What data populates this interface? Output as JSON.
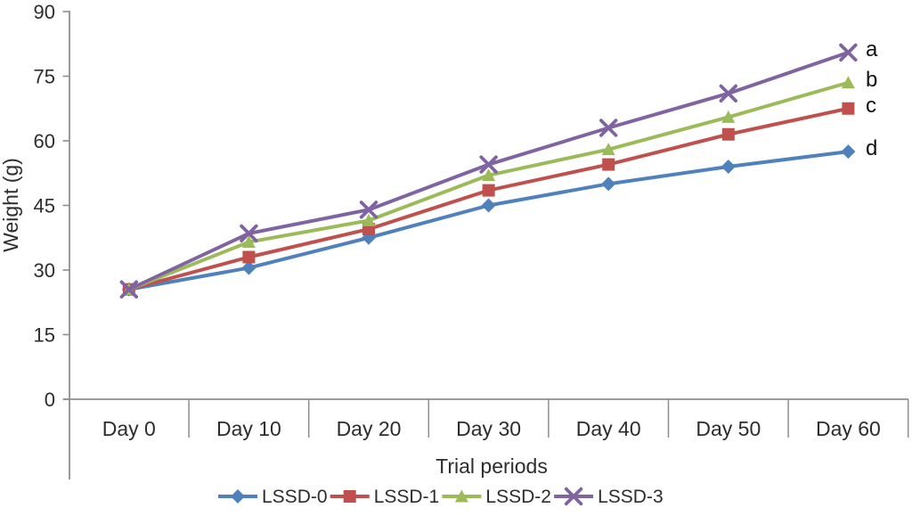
{
  "chart_data": {
    "type": "line",
    "title": "",
    "xlabel": "Trial periods",
    "ylabel": "Weight (g)",
    "categories": [
      "Day 0",
      "Day 10",
      "Day 20",
      "Day 30",
      "Day 40",
      "Day 50",
      "Day 60"
    ],
    "ylim": [
      0,
      90
    ],
    "ytick_step": 15,
    "ytick_labels": [
      "0",
      "15",
      "30",
      "45",
      "60",
      "75",
      "90"
    ],
    "grid": false,
    "legend_position": "bottom",
    "series": [
      {
        "name": "LSSD-0",
        "color": "#4F81BD",
        "marker": "diamond",
        "values": [
          25.5,
          30.5,
          37.5,
          45.0,
          50.0,
          54.0,
          57.5
        ]
      },
      {
        "name": "LSSD-1",
        "color": "#C0504D",
        "marker": "square",
        "values": [
          25.5,
          33.0,
          39.5,
          48.5,
          54.5,
          61.5,
          67.5
        ]
      },
      {
        "name": "LSSD-2",
        "color": "#9BBB59",
        "marker": "triangle",
        "values": [
          25.5,
          36.5,
          41.5,
          52.0,
          58.0,
          65.5,
          73.5
        ]
      },
      {
        "name": "LSSD-3",
        "color": "#8064A2",
        "marker": "x",
        "values": [
          25.5,
          38.5,
          44.0,
          54.5,
          63.0,
          71.0,
          80.5
        ]
      }
    ],
    "annotations": [
      {
        "text": "a",
        "series": "LSSD-3"
      },
      {
        "text": "b",
        "series": "LSSD-2"
      },
      {
        "text": "c",
        "series": "LSSD-1"
      },
      {
        "text": "d",
        "series": "LSSD-0"
      }
    ],
    "colors": {
      "axis_line": "#8e8e8e",
      "text": "#2d2d2d",
      "annotation_text": "#111111"
    }
  }
}
